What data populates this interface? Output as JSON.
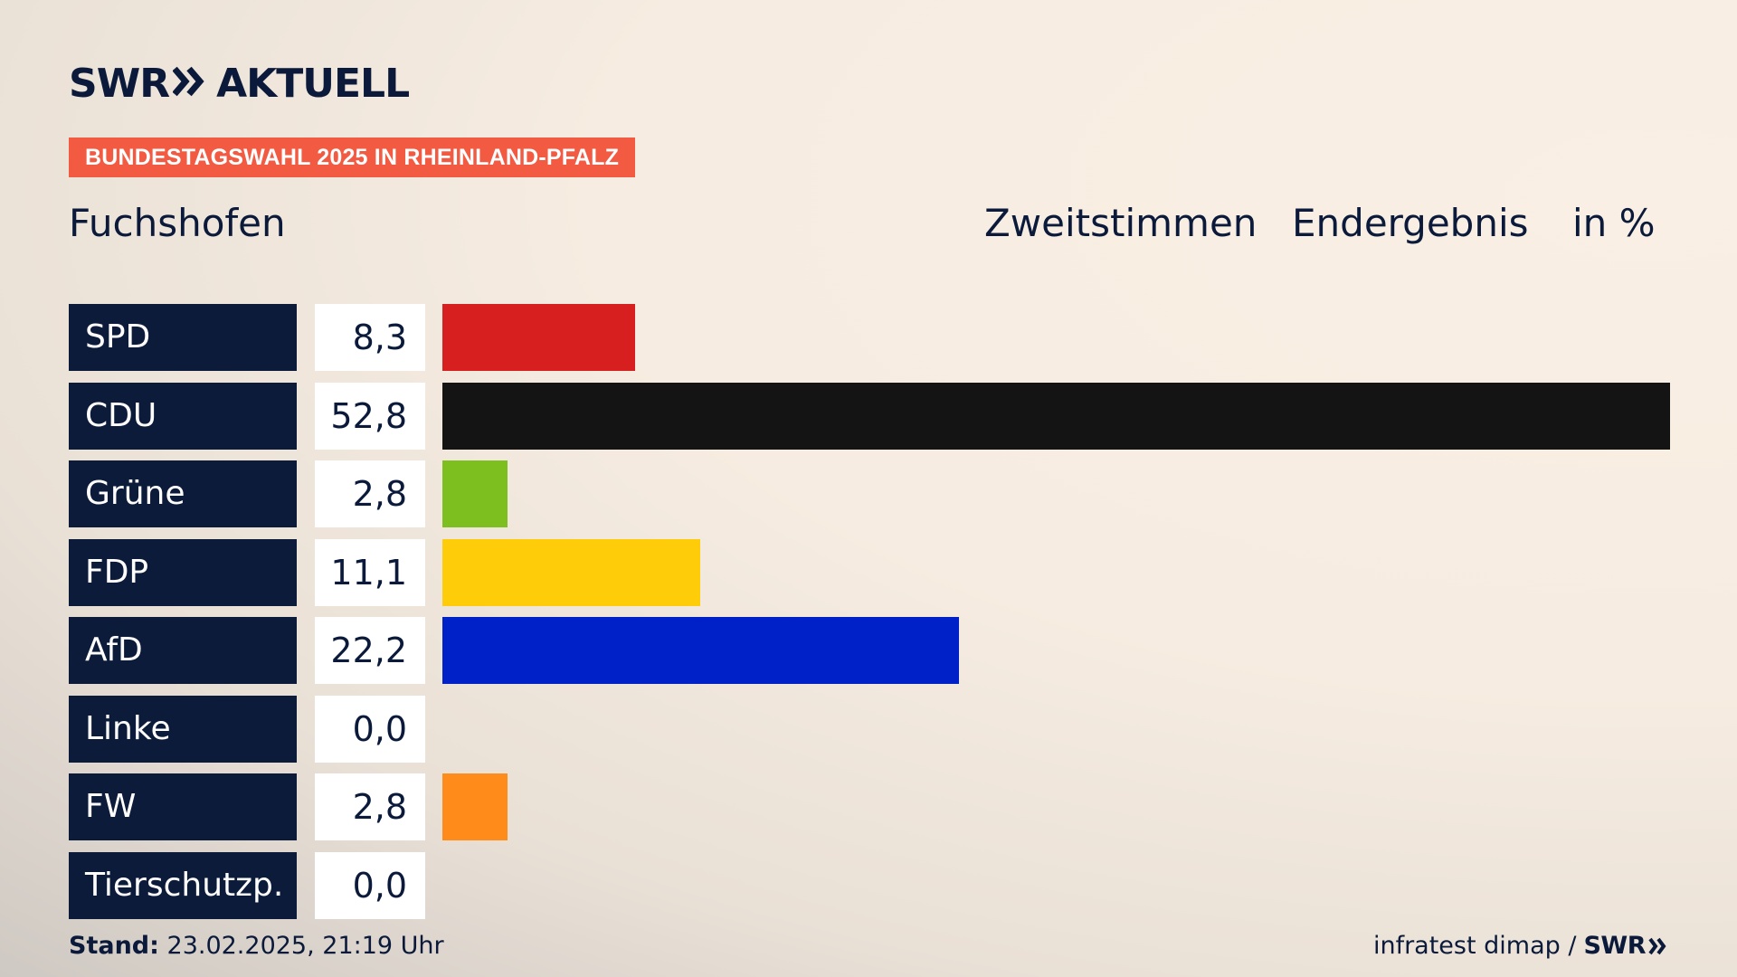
{
  "header": {
    "brand_left": "SWR",
    "brand_right": "AKTUELL",
    "banner": "BUNDESTAGSWAHL 2025 IN RHEINLAND-PFALZ",
    "region": "Fuchshofen",
    "col_vote": "Zweitstimmen",
    "col_status": "Endergebnis",
    "col_unit": "in %"
  },
  "colors": {
    "navy": "#0c1b3a",
    "banner": "#f25a42"
  },
  "chart_data": {
    "type": "bar",
    "orientation": "horizontal",
    "categories": [
      "SPD",
      "CDU",
      "Grüne",
      "FDP",
      "AfD",
      "Linke",
      "FW",
      "Tierschutzp."
    ],
    "values": [
      8.3,
      52.8,
      2.8,
      11.1,
      22.2,
      0.0,
      2.8,
      0.0
    ],
    "value_labels": [
      "8,3",
      "52,8",
      "2,8",
      "11,1",
      "22,2",
      "0,0",
      "2,8",
      "0,0"
    ],
    "colors": [
      "#d71f1f",
      "#141414",
      "#7cbf1e",
      "#ffcc0a",
      "#0020c8",
      "#b41e6e",
      "#ff8c1a",
      "#0b6b5a"
    ],
    "xlim": [
      0,
      52.8
    ]
  },
  "footer": {
    "stand_label": "Stand:",
    "stand_value": "23.02.2025, 21:19 Uhr",
    "source": "infratest dimap /",
    "source_brand": "SWR"
  }
}
